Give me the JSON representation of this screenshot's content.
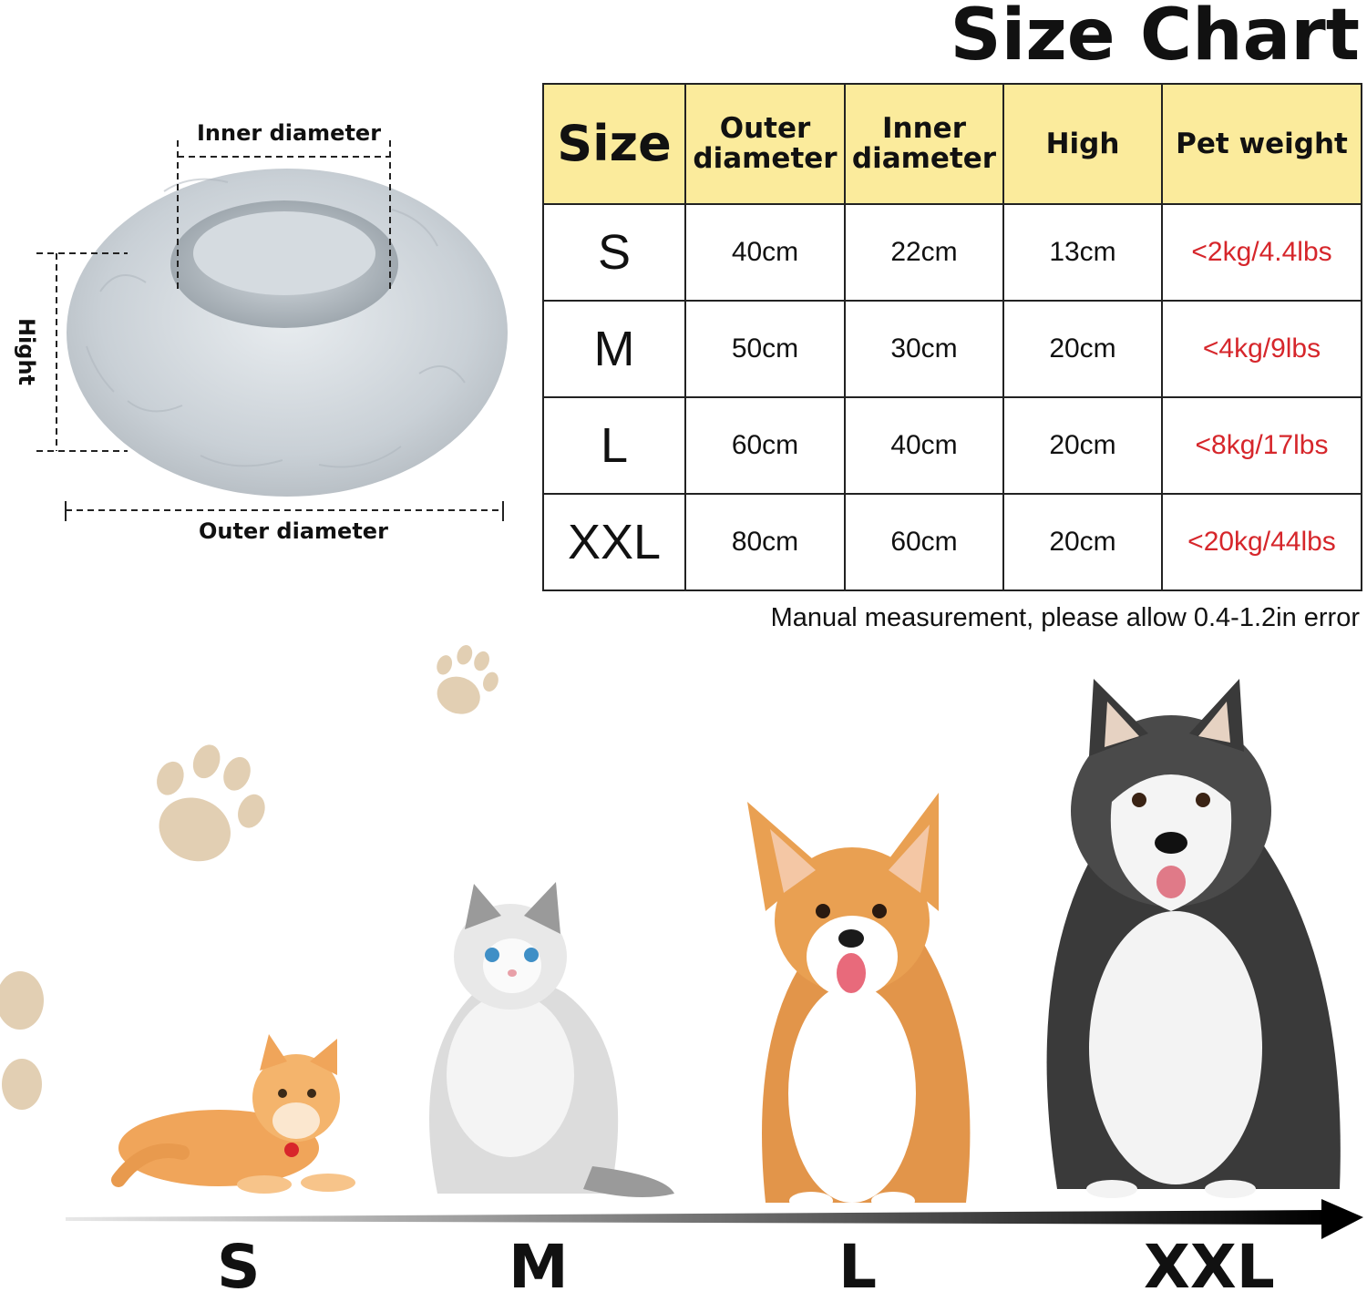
{
  "title": "Size Chart",
  "diagram": {
    "inner_label": "Inner diameter",
    "outer_label": "Outer diameter",
    "height_label": "Hight"
  },
  "table": {
    "headers": [
      "Size",
      "Outer diameter",
      "Inner diameter",
      "High",
      "Pet weight"
    ],
    "rows": [
      [
        "S",
        "40cm",
        "22cm",
        "13cm",
        "<2kg/4.4lbs"
      ],
      [
        "M",
        "50cm",
        "30cm",
        "20cm",
        "<4kg/9lbs"
      ],
      [
        "L",
        "60cm",
        "40cm",
        "20cm",
        "<8kg/17lbs"
      ],
      [
        "XXL",
        "80cm",
        "60cm",
        "20cm",
        "<20kg/44lbs"
      ]
    ],
    "header_bg": "#fbeb9c",
    "weight_color": "#d6262b"
  },
  "note": "Manual measurement, please allow 0.4-1.2in error",
  "pets": [
    {
      "name": "kitten",
      "size": "S"
    },
    {
      "name": "cat",
      "size": "M"
    },
    {
      "name": "corgi",
      "size": "L"
    },
    {
      "name": "husky",
      "size": "XXL"
    }
  ],
  "scale_labels": [
    "S",
    "M",
    "L",
    "XXL"
  ],
  "paw_color": "#e2cfb3"
}
